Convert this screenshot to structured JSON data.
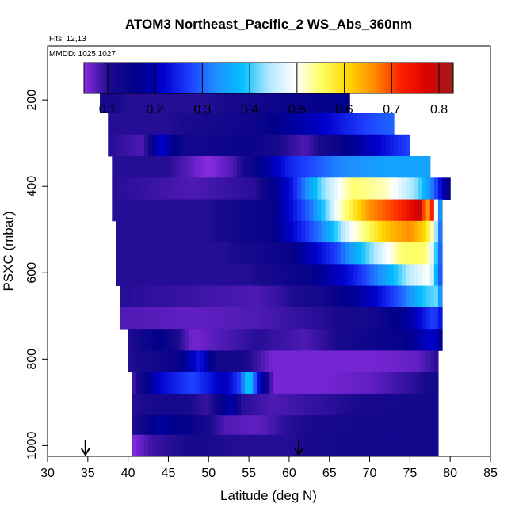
{
  "chart_data": {
    "type": "heatmap",
    "title": "ATOM3 Northeast_Pacific_2 WS_Abs_360nm",
    "annotations": {
      "flights": "Flts: 12,13",
      "dates": "MMDD: 1025,1027"
    },
    "xlabel": "Latitude (deg N)",
    "ylabel": "PSXC (mbar)",
    "xlim": [
      30,
      85
    ],
    "ylim": [
      1025,
      75
    ],
    "y_reversed": true,
    "x_ticks": [
      "30",
      "35",
      "40",
      "45",
      "50",
      "55",
      "60",
      "65",
      "70",
      "75",
      "80",
      "85"
    ],
    "y_ticks": [
      "200",
      "400",
      "600",
      "800",
      "1000"
    ],
    "colorbar": {
      "min": 0.05,
      "max": 0.83,
      "ticks": [
        "0.1",
        "0.2",
        "0.3",
        "0.4",
        "0.5",
        "0.6",
        "0.7",
        "0.8"
      ],
      "colors": [
        "#8a2be2",
        "#1a0a8c",
        "#00008b",
        "#0000cd",
        "#1e3cff",
        "#1e90ff",
        "#00bfff",
        "#b0e8ff",
        "#ffffff",
        "#ffff66",
        "#ffd700",
        "#ff8c00",
        "#ff2000",
        "#dc0000",
        "#9b1c1c"
      ]
    },
    "markers": [
      {
        "latitude": 34.7,
        "symbol": "down-arrow"
      },
      {
        "latitude": 61.2,
        "symbol": "down-arrow"
      }
    ],
    "pressure_bands": [
      {
        "p_top": 180,
        "p_bottom": 230,
        "lat_min": 36.5,
        "lat_max": 67.5,
        "values": [
          [
            36.5,
            0.12
          ],
          [
            40,
            0.1
          ],
          [
            50,
            0.1
          ],
          [
            60,
            0.14
          ],
          [
            67.5,
            0.16
          ]
        ]
      },
      {
        "p_top": 230,
        "p_bottom": 280,
        "lat_min": 37.5,
        "lat_max": 73,
        "values": [
          [
            37.5,
            0.1
          ],
          [
            45,
            0.1
          ],
          [
            55,
            0.13
          ],
          [
            63,
            0.2
          ],
          [
            70,
            0.28
          ],
          [
            73,
            0.3
          ]
        ]
      },
      {
        "p_top": 280,
        "p_bottom": 330,
        "lat_min": 37.5,
        "lat_max": 75,
        "values": [
          [
            37.5,
            0.1
          ],
          [
            42,
            0.08
          ],
          [
            44,
            0.22
          ],
          [
            47,
            0.12
          ],
          [
            55,
            0.14
          ],
          [
            62,
            0.08
          ],
          [
            70,
            0.2
          ],
          [
            75,
            0.28
          ]
        ]
      },
      {
        "p_top": 330,
        "p_bottom": 380,
        "lat_min": 38,
        "lat_max": 77.5,
        "values": [
          [
            38,
            0.1
          ],
          [
            45,
            0.1
          ],
          [
            50,
            0.05
          ],
          [
            53,
            0.08
          ],
          [
            56,
            0.15
          ],
          [
            60,
            0.25
          ],
          [
            66,
            0.32
          ],
          [
            72,
            0.35
          ],
          [
            77.5,
            0.35
          ]
        ]
      },
      {
        "p_top": 380,
        "p_bottom": 430,
        "lat_min": 38,
        "lat_max": 80,
        "values": [
          [
            38,
            0.1
          ],
          [
            48,
            0.08
          ],
          [
            56,
            0.1
          ],
          [
            60,
            0.22
          ],
          [
            64,
            0.42
          ],
          [
            68,
            0.55
          ],
          [
            72,
            0.52
          ],
          [
            76,
            0.42
          ],
          [
            78,
            0.3
          ],
          [
            80,
            0.12
          ]
        ]
      },
      {
        "p_top": 430,
        "p_bottom": 480,
        "lat_min": 38,
        "lat_max": 79,
        "values": [
          [
            38,
            0.1
          ],
          [
            50,
            0.1
          ],
          [
            58,
            0.15
          ],
          [
            63,
            0.32
          ],
          [
            66,
            0.5
          ],
          [
            70,
            0.66
          ],
          [
            74,
            0.72
          ],
          [
            76.5,
            0.8
          ],
          [
            77,
            0.6
          ],
          [
            77.7,
            0.75
          ],
          [
            78.2,
            0.5
          ],
          [
            79,
            0.25
          ]
        ]
      },
      {
        "p_top": 480,
        "p_bottom": 530,
        "lat_min": 38.5,
        "lat_max": 79,
        "values": [
          [
            38.5,
            0.1
          ],
          [
            50,
            0.1
          ],
          [
            58,
            0.15
          ],
          [
            64,
            0.32
          ],
          [
            68,
            0.5
          ],
          [
            72,
            0.62
          ],
          [
            75,
            0.66
          ],
          [
            77,
            0.6
          ],
          [
            78,
            0.5
          ],
          [
            79,
            0.25
          ]
        ]
      },
      {
        "p_top": 530,
        "p_bottom": 580,
        "lat_min": 38.5,
        "lat_max": 79,
        "values": [
          [
            38.5,
            0.1
          ],
          [
            52,
            0.1
          ],
          [
            60,
            0.14
          ],
          [
            66,
            0.28
          ],
          [
            70,
            0.42
          ],
          [
            74,
            0.55
          ],
          [
            77,
            0.55
          ],
          [
            78,
            0.45
          ],
          [
            79,
            0.25
          ]
        ]
      },
      {
        "p_top": 580,
        "p_bottom": 630,
        "lat_min": 38.5,
        "lat_max": 79,
        "values": [
          [
            38.5,
            0.1
          ],
          [
            55,
            0.1
          ],
          [
            62,
            0.14
          ],
          [
            68,
            0.24
          ],
          [
            72,
            0.35
          ],
          [
            75,
            0.45
          ],
          [
            77.5,
            0.5
          ],
          [
            79,
            0.25
          ]
        ]
      },
      {
        "p_top": 630,
        "p_bottom": 680,
        "lat_min": 39,
        "lat_max": 79,
        "values": [
          [
            39,
            0.1
          ],
          [
            56,
            0.08
          ],
          [
            64,
            0.12
          ],
          [
            70,
            0.2
          ],
          [
            74,
            0.3
          ],
          [
            77,
            0.4
          ],
          [
            78.5,
            0.42
          ],
          [
            79,
            0.25
          ]
        ]
      },
      {
        "p_top": 680,
        "p_bottom": 730,
        "lat_min": 39,
        "lat_max": 79,
        "values": [
          [
            39,
            0.08
          ],
          [
            48,
            0.07
          ],
          [
            56,
            0.08
          ],
          [
            64,
            0.1
          ],
          [
            70,
            0.12
          ],
          [
            75,
            0.18
          ],
          [
            78,
            0.28
          ],
          [
            79,
            0.22
          ]
        ]
      },
      {
        "p_top": 730,
        "p_bottom": 780,
        "lat_min": 40,
        "lat_max": 79,
        "values": [
          [
            40,
            0.1
          ],
          [
            44,
            0.16
          ],
          [
            48,
            0.06
          ],
          [
            56,
            0.1
          ],
          [
            62,
            0.08
          ],
          [
            68,
            0.12
          ],
          [
            74,
            0.15
          ],
          [
            78,
            0.22
          ],
          [
            79,
            0.15
          ]
        ]
      },
      {
        "p_top": 780,
        "p_bottom": 830,
        "lat_min": 40,
        "lat_max": 78.5,
        "values": [
          [
            40,
            0.1
          ],
          [
            46,
            0.14
          ],
          [
            49,
            0.24
          ],
          [
            51,
            0.12
          ],
          [
            54,
            0.12
          ],
          [
            58,
            0.06
          ],
          [
            64,
            0.06
          ],
          [
            70,
            0.06
          ],
          [
            76,
            0.07
          ],
          [
            78.5,
            0.1
          ]
        ]
      },
      {
        "p_top": 830,
        "p_bottom": 880,
        "lat_min": 40.5,
        "lat_max": 78.5,
        "values": [
          [
            40.5,
            0.08
          ],
          [
            44,
            0.22
          ],
          [
            48,
            0.28
          ],
          [
            52,
            0.2
          ],
          [
            54,
            0.28
          ],
          [
            55,
            0.42
          ],
          [
            56,
            0.25
          ],
          [
            58,
            0.06
          ],
          [
            64,
            0.06
          ],
          [
            70,
            0.07
          ],
          [
            76,
            0.1
          ],
          [
            78.5,
            0.12
          ]
        ]
      },
      {
        "p_top": 880,
        "p_bottom": 930,
        "lat_min": 40.5,
        "lat_max": 78.5,
        "values": [
          [
            40.5,
            0.1
          ],
          [
            46,
            0.12
          ],
          [
            50,
            0.09
          ],
          [
            53,
            0.2
          ],
          [
            54,
            0.1
          ],
          [
            58,
            0.08
          ],
          [
            66,
            0.1
          ],
          [
            74,
            0.12
          ],
          [
            78.5,
            0.12
          ]
        ]
      },
      {
        "p_top": 930,
        "p_bottom": 975,
        "lat_min": 40.5,
        "lat_max": 78.5,
        "values": [
          [
            40.5,
            0.1
          ],
          [
            44,
            0.18
          ],
          [
            48,
            0.14
          ],
          [
            52,
            0.08
          ],
          [
            56,
            0.07
          ],
          [
            60,
            0.1
          ],
          [
            68,
            0.12
          ],
          [
            76,
            0.12
          ],
          [
            78.5,
            0.12
          ]
        ]
      },
      {
        "p_top": 975,
        "p_bottom": 1025,
        "lat_min": 40.5,
        "lat_max": 78.5,
        "values": [
          [
            40.5,
            0.05
          ],
          [
            43,
            0.09
          ],
          [
            48,
            0.11
          ],
          [
            54,
            0.1
          ],
          [
            60,
            0.1
          ],
          [
            66,
            0.12
          ],
          [
            72,
            0.12
          ],
          [
            78.5,
            0.12
          ]
        ]
      }
    ]
  }
}
